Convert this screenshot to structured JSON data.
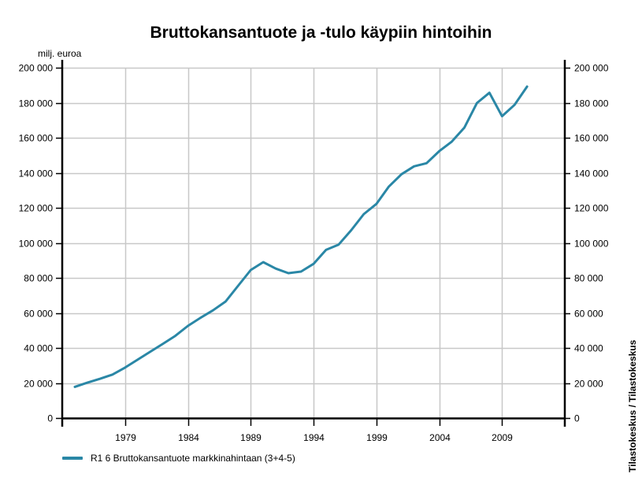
{
  "title": "Bruttokansantuote ja -tulo käypiin hintoihin",
  "unit_label": "milj. euroa",
  "source_label": "Tilastokeskus / Tilastokeskus",
  "legend": [
    {
      "label": "R1 6 Bruttokansantuote markkinahintaan (3+4-5)",
      "color": "#2a87a6"
    }
  ],
  "colors": {
    "series": "#2a87a6",
    "grid": "#c8c8c8",
    "axis": "#000000"
  },
  "chart_data": {
    "type": "line",
    "title": "Bruttokansantuote ja -tulo käypiin hintoihin",
    "xlabel": "",
    "ylabel": "milj. euroa",
    "y2label": "milj. euroa",
    "xlim": [
      1974,
      2014
    ],
    "ylim": [
      0,
      200000
    ],
    "grid": true,
    "legend_position": "bottom-left",
    "x_ticks": [
      "1979",
      "1984",
      "1989",
      "1994",
      "1999",
      "2004",
      "2009"
    ],
    "y_ticks": [
      "0",
      "20 000",
      "40 000",
      "60 000",
      "80 000",
      "100 000",
      "120 000",
      "140 000",
      "160 000",
      "180 000",
      "200 000"
    ],
    "x": [
      1975,
      1976,
      1977,
      1978,
      1979,
      1980,
      1981,
      1982,
      1983,
      1984,
      1985,
      1986,
      1987,
      1988,
      1989,
      1990,
      1991,
      1992,
      1993,
      1994,
      1995,
      1996,
      1997,
      1998,
      1999,
      2000,
      2001,
      2002,
      2003,
      2004,
      2005,
      2006,
      2007,
      2008,
      2009,
      2010,
      2011
    ],
    "series": [
      {
        "name": "R1 6 Bruttokansantuote markkinahintaan (3+4-5)",
        "values": [
          17800,
          20200,
          22400,
          24800,
          28800,
          33300,
          37800,
          42300,
          46900,
          52600,
          57200,
          61500,
          66500,
          75500,
          84500,
          89000,
          85300,
          82700,
          83600,
          88000,
          96000,
          99000,
          107200,
          116400,
          122200,
          132200,
          139200,
          143700,
          145500,
          152300,
          157800,
          165700,
          179800,
          185700,
          172300,
          178800,
          189200
        ]
      }
    ],
    "source": "Tilastokeskus / Tilastokeskus"
  }
}
